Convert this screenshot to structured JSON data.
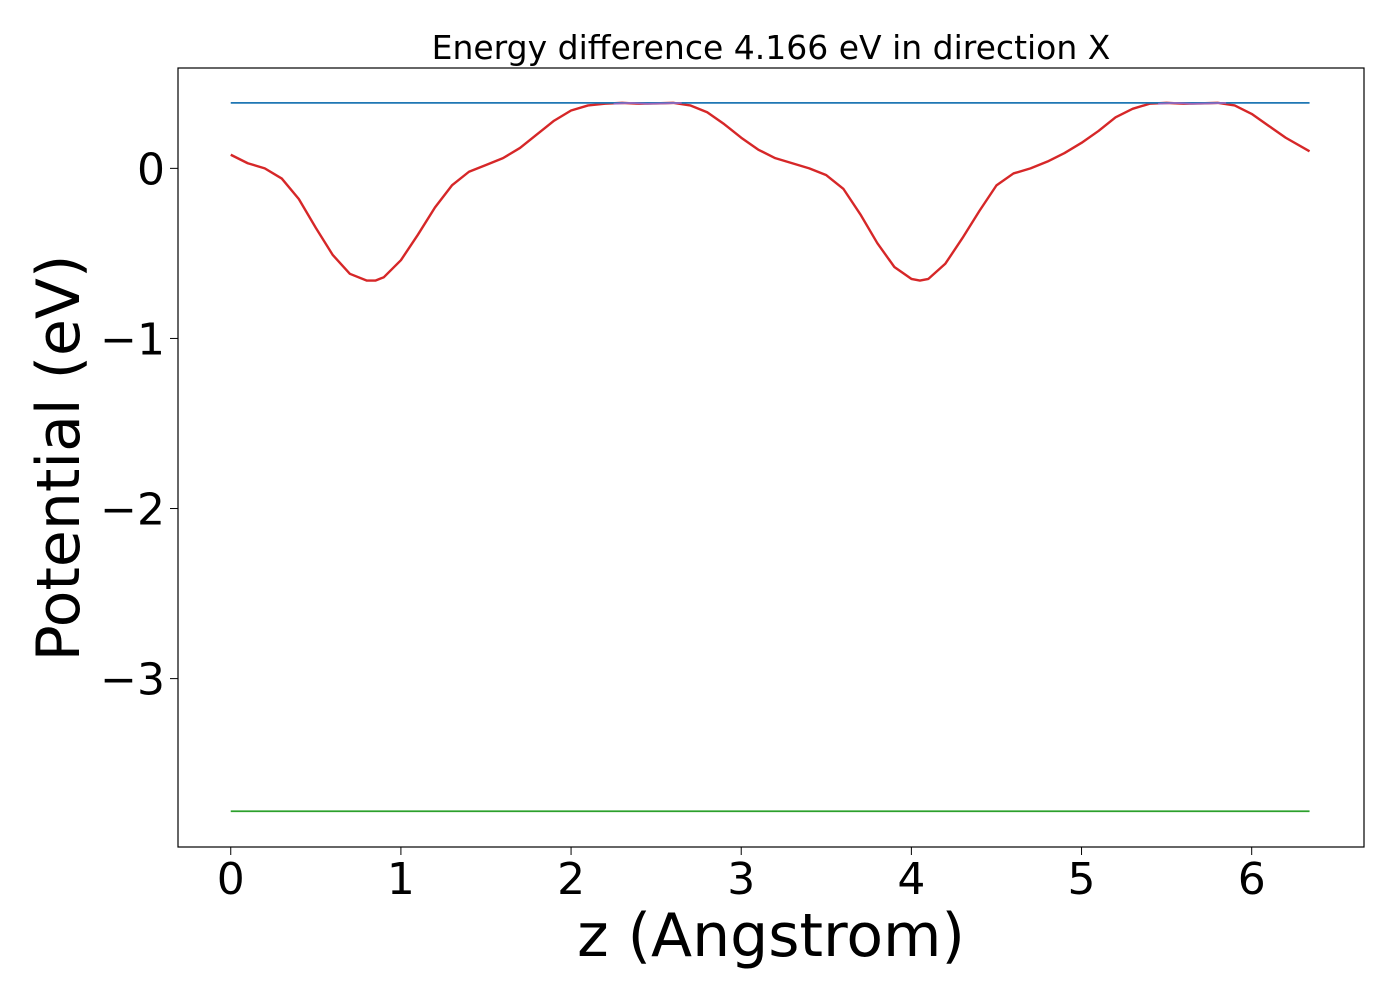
{
  "chart_data": {
    "type": "line",
    "title": "Energy difference 4.166 eV in direction X",
    "xlabel": "z (Angstrom)",
    "ylabel": "Potential (eV)",
    "xlim": [
      -0.31,
      6.66
    ],
    "ylim": [
      -3.99,
      0.59
    ],
    "xticks": [
      {
        "value": 0,
        "label": "0"
      },
      {
        "value": 1,
        "label": "1"
      },
      {
        "value": 2,
        "label": "2"
      },
      {
        "value": 3,
        "label": "3"
      },
      {
        "value": 4,
        "label": "4"
      },
      {
        "value": 5,
        "label": "5"
      },
      {
        "value": 6,
        "label": "6"
      }
    ],
    "yticks": [
      {
        "value": 0,
        "label": "0"
      },
      {
        "value": -1,
        "label": "−1"
      },
      {
        "value": -2,
        "label": "−2"
      },
      {
        "value": -3,
        "label": "−3"
      }
    ],
    "grid": false,
    "legend": "none",
    "series": [
      {
        "color": "#d62728",
        "x": [
          0.0,
          0.1,
          0.2,
          0.3,
          0.4,
          0.5,
          0.6,
          0.7,
          0.8,
          0.85,
          0.9,
          1.0,
          1.1,
          1.2,
          1.3,
          1.4,
          1.5,
          1.6,
          1.7,
          1.8,
          1.9,
          2.0,
          2.1,
          2.2,
          2.3,
          2.4,
          2.5,
          2.6,
          2.7,
          2.8,
          2.9,
          3.0,
          3.1,
          3.2,
          3.3,
          3.4,
          3.5,
          3.6,
          3.7,
          3.8,
          3.9,
          4.0,
          4.05,
          4.1,
          4.2,
          4.3,
          4.4,
          4.5,
          4.6,
          4.7,
          4.8,
          4.9,
          5.0,
          5.1,
          5.2,
          5.3,
          5.4,
          5.5,
          5.6,
          5.7,
          5.8,
          5.9,
          6.0,
          6.1,
          6.2,
          6.34
        ],
        "y": [
          0.08,
          0.03,
          0.0,
          -0.06,
          -0.18,
          -0.35,
          -0.51,
          -0.62,
          -0.66,
          -0.66,
          -0.64,
          -0.54,
          -0.39,
          -0.23,
          -0.1,
          -0.02,
          0.02,
          0.06,
          0.12,
          0.2,
          0.28,
          0.34,
          0.37,
          0.38,
          0.385,
          0.38,
          0.382,
          0.385,
          0.37,
          0.33,
          0.26,
          0.18,
          0.11,
          0.06,
          0.03,
          0.0,
          -0.04,
          -0.12,
          -0.27,
          -0.44,
          -0.58,
          -0.65,
          -0.66,
          -0.65,
          -0.56,
          -0.41,
          -0.25,
          -0.1,
          -0.03,
          0.0,
          0.04,
          0.09,
          0.15,
          0.22,
          0.3,
          0.35,
          0.38,
          0.385,
          0.38,
          0.382,
          0.385,
          0.37,
          0.32,
          0.25,
          0.18,
          0.1
        ]
      },
      {
        "color": "#1f77b4",
        "x": [
          0.0,
          6.34
        ],
        "y": [
          0.385,
          0.385
        ]
      },
      {
        "color": "#2ca02c",
        "x": [
          0.0,
          6.34
        ],
        "y": [
          -3.78,
          -3.78
        ]
      },
      {
        "color": "#9467bd",
        "x": [
          2.25,
          2.35,
          2.45,
          2.55,
          2.65,
          5.45,
          5.55,
          5.65,
          5.75,
          5.85
        ],
        "y": [
          0.38,
          0.385,
          0.38,
          0.382,
          0.385,
          0.38,
          0.385,
          0.38,
          0.382,
          0.385
        ]
      }
    ]
  }
}
